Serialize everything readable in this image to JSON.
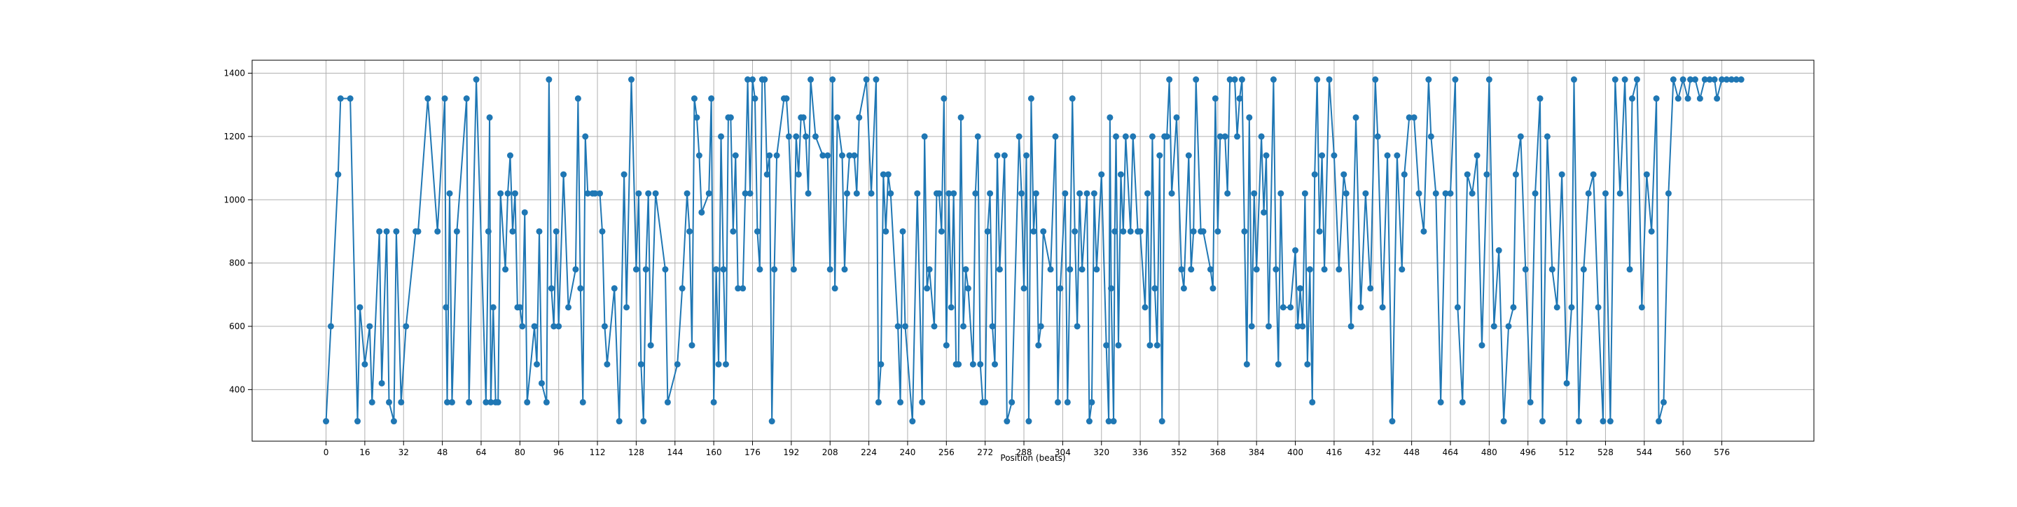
{
  "chart_data": {
    "type": "line",
    "xlabel": "Position (beats)",
    "x": [
      0,
      2,
      5,
      6,
      10,
      13,
      14,
      16,
      18,
      19,
      22,
      23,
      25,
      26,
      28,
      29,
      31,
      33,
      37,
      38,
      42,
      46,
      49,
      49.5,
      50,
      51,
      52,
      54,
      58,
      59,
      62,
      66,
      67,
      67.5,
      68,
      69,
      70,
      71,
      72,
      74,
      75,
      76,
      77,
      78,
      79,
      80,
      81,
      82,
      83,
      86,
      87,
      88,
      89,
      91,
      92,
      93,
      94,
      95,
      96,
      98,
      100,
      103,
      104,
      105,
      106,
      107,
      108,
      110,
      111,
      113,
      114,
      115,
      116,
      119,
      121,
      123,
      124,
      126,
      128,
      129,
      130,
      131,
      132,
      133,
      134,
      136,
      140,
      141,
      145,
      147,
      149,
      150,
      151,
      152,
      153,
      154,
      155,
      158,
      159,
      160,
      161,
      162,
      163,
      164,
      165,
      166,
      167,
      168,
      169,
      170,
      172,
      173,
      174,
      175,
      176,
      177,
      178,
      179,
      180,
      181,
      182,
      183,
      184,
      185,
      186,
      189,
      190,
      191,
      193,
      194,
      195,
      196,
      197,
      198,
      199,
      200,
      202,
      205,
      207,
      208,
      209,
      210,
      211,
      213,
      214,
      215,
      216,
      218,
      219,
      220,
      223,
      225,
      227,
      228,
      229,
      230,
      231,
      232,
      233,
      236,
      237,
      238,
      239,
      242,
      244,
      246,
      247,
      248,
      249,
      251,
      252,
      253,
      254,
      255,
      256,
      257,
      258,
      259,
      260,
      261,
      262,
      263,
      264,
      265,
      267,
      268,
      269,
      270,
      271,
      272,
      273,
      274,
      275,
      276,
      277,
      278,
      280,
      281,
      283,
      286,
      287,
      288,
      289,
      290,
      291,
      292,
      293,
      294,
      295,
      296,
      299,
      301,
      302,
      303,
      305,
      306,
      307,
      308,
      309,
      310,
      311,
      312,
      314,
      315,
      316,
      317,
      318,
      320,
      322,
      323,
      323.5,
      324,
      325,
      325.5,
      326,
      327,
      328,
      329,
      330,
      332,
      333,
      335,
      336,
      338,
      339,
      340,
      341,
      342,
      343,
      344,
      345,
      346,
      347,
      348,
      349,
      351,
      353,
      354,
      356,
      357,
      358,
      359,
      361,
      362,
      365,
      366,
      367,
      368,
      369,
      371,
      372,
      373,
      375,
      376,
      377,
      378,
      379,
      380,
      381,
      382,
      383,
      384,
      386,
      387,
      388,
      389,
      391,
      392,
      393,
      394,
      395,
      398,
      400,
      401,
      402,
      403,
      404,
      405,
      406,
      407,
      408,
      409,
      410,
      411,
      412,
      414,
      416,
      418,
      420,
      421,
      423,
      425,
      427,
      429,
      431,
      433,
      434,
      436,
      438,
      440,
      442,
      444,
      445,
      447,
      449,
      451,
      453,
      455,
      456,
      458,
      460,
      462,
      464,
      466,
      467,
      469,
      471,
      473,
      475,
      477,
      479,
      480,
      482,
      484,
      486,
      488,
      490,
      491,
      493,
      495,
      497,
      499,
      501,
      502,
      504,
      506,
      508,
      510,
      512,
      514,
      515,
      517,
      519,
      521,
      523,
      525,
      527,
      528,
      530,
      532,
      534,
      536,
      538,
      539,
      541,
      543,
      545,
      547,
      549,
      550,
      552,
      554,
      556,
      558,
      560,
      562,
      563,
      565,
      567,
      569,
      571,
      573,
      574,
      576,
      578,
      580,
      582,
      584
    ],
    "series": [
      {
        "color": "#1f77b4",
        "values": [
          300,
          600,
          1080,
          1320,
          1320,
          300,
          660,
          480,
          600,
          360,
          900,
          420,
          900,
          360,
          300,
          900,
          360,
          600,
          900,
          900,
          1320,
          900,
          1320,
          660,
          360,
          1020,
          360,
          900,
          1320,
          360,
          1380,
          360,
          900,
          1260,
          360,
          660,
          360,
          360,
          1020,
          780,
          1020,
          1140,
          900,
          1020,
          660,
          660,
          600,
          960,
          360,
          600,
          480,
          900,
          420,
          360,
          1380,
          720,
          600,
          900,
          600,
          1080,
          660,
          780,
          1320,
          720,
          360,
          1200,
          1020,
          1020,
          1020,
          1020,
          900,
          600,
          480,
          720,
          300,
          1080,
          660,
          1380,
          780,
          1020,
          480,
          300,
          780,
          1020,
          540,
          1020,
          780,
          360,
          480,
          720,
          1020,
          900,
          540,
          1320,
          1260,
          1140,
          960,
          1020,
          1320,
          360,
          780,
          480,
          1200,
          780,
          480,
          1260,
          1260,
          900,
          1140,
          720,
          720,
          1020,
          1380,
          1020,
          1380,
          1320,
          900,
          780,
          1380,
          1380,
          1080,
          1140,
          300,
          780,
          1140,
          1320,
          1320,
          1200,
          780,
          1200,
          1080,
          1260,
          1260,
          1200,
          1020,
          1380,
          1200,
          1140,
          1140,
          780,
          1380,
          720,
          1260,
          1140,
          780,
          1020,
          1140,
          1140,
          1020,
          1260,
          1380,
          1020,
          1380,
          360,
          480,
          1080,
          900,
          1080,
          1020,
          600,
          360,
          900,
          600,
          300,
          1020,
          360,
          1200,
          720,
          780,
          600,
          1020,
          1020,
          900,
          1320,
          540,
          1020,
          660,
          1020,
          480,
          480,
          1260,
          600,
          780,
          720,
          480,
          1020,
          1200,
          480,
          360,
          360,
          900,
          1020,
          600,
          480,
          1140,
          780,
          1140,
          300,
          360,
          1200,
          1020,
          720,
          1140,
          300,
          1320,
          900,
          1020,
          540,
          600,
          900,
          780,
          1200,
          360,
          720,
          1020,
          360,
          780,
          1320,
          900,
          600,
          1020,
          780,
          1020,
          300,
          360,
          1020,
          780,
          1080,
          540,
          300,
          1260,
          720,
          300,
          900,
          1200,
          540,
          1080,
          900,
          1200,
          900,
          1200,
          900,
          900,
          660,
          1020,
          540,
          1200,
          720,
          540,
          1140,
          300,
          1200,
          1200,
          1380,
          1020,
          1260,
          780,
          720,
          1140,
          780,
          900,
          1380,
          900,
          900,
          780,
          720,
          1320,
          900,
          1200,
          1200,
          1020,
          1380,
          1380,
          1200,
          1320,
          1380,
          900,
          480,
          1260,
          600,
          1020,
          780,
          1200,
          960,
          1140,
          600,
          1380,
          780,
          480,
          1020,
          660,
          660,
          840,
          600,
          720,
          600,
          1020,
          480,
          780,
          360,
          1080,
          1380,
          900,
          1140,
          780,
          1380,
          1140,
          780,
          1080,
          1020,
          600,
          1260,
          660,
          1020,
          720,
          1380,
          1200,
          660,
          1140,
          300,
          1140,
          780,
          1080,
          1260,
          1260,
          1020,
          900,
          1380,
          1200,
          1020,
          360,
          1020,
          1020,
          1380,
          660,
          360,
          1080,
          1020,
          1140,
          540,
          1080,
          1380,
          600,
          840,
          300,
          600,
          660,
          1080,
          1200,
          780,
          360,
          1020,
          1320,
          300,
          1200,
          780,
          660,
          1080,
          420,
          660,
          1380,
          300,
          780,
          1020,
          1080,
          660,
          300,
          1020,
          300,
          1380,
          1020,
          1380,
          780,
          1320,
          1380,
          660,
          1080,
          900,
          1320,
          300,
          360,
          1020,
          1380,
          1320,
          1380,
          1320,
          1380,
          1380,
          1320,
          1380,
          1380,
          1380,
          1320,
          1380,
          1380,
          1380,
          1380,
          1380
        ]
      }
    ],
    "xlim": [
      -30.5,
      614
    ],
    "ylim": [
      237,
      1441
    ],
    "xticks": [
      0,
      16,
      32,
      48,
      64,
      80,
      96,
      112,
      128,
      144,
      160,
      176,
      192,
      208,
      224,
      240,
      256,
      272,
      288,
      304,
      320,
      336,
      352,
      368,
      384,
      400,
      416,
      432,
      448,
      464,
      480,
      496,
      512,
      528,
      544,
      560,
      576
    ],
    "yticks": [
      400,
      600,
      800,
      1000,
      1200,
      1400
    ],
    "grid": true
  }
}
